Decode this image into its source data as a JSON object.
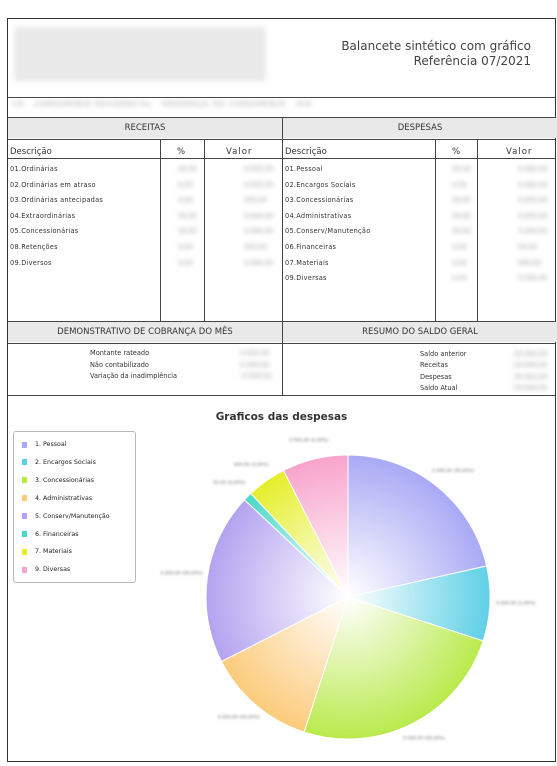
{
  "report": {
    "title": "Balancete sintético com gráfico",
    "reference": "Referência 07/2021",
    "condominium": "CO - CONDOMÍNIO RESIDENCIAL · ENDEREÇO DO CONDOMÍNIO · 000"
  },
  "receitas": {
    "header": "RECEITAS",
    "col_desc": "Descrição",
    "col_pct": "%",
    "col_val": "Valor",
    "rows": [
      {
        "label": "01.Ordinárias",
        "pct": "00,00",
        "val": "0.000,00"
      },
      {
        "label": "02.Ordinárias em atraso",
        "pct": "0,00",
        "val": "0.000,00"
      },
      {
        "label": "03.Ordinárias antecipadas",
        "pct": "0,00",
        "val": "000,00"
      },
      {
        "label": "04.Extraordinárias",
        "pct": "00,00",
        "val": "0.000,00"
      },
      {
        "label": "05.Concessionárias",
        "pct": "00,00",
        "val": "0.000,00"
      },
      {
        "label": "08.Retenções",
        "pct": "0,00",
        "val": "000,00"
      },
      {
        "label": "09.Diversos",
        "pct": "0,00",
        "val": "0.000,00"
      }
    ]
  },
  "despesas": {
    "header": "DESPESAS",
    "col_desc": "Descrição",
    "col_pct": "%",
    "col_val": "Valor",
    "rows": [
      {
        "label": "01.Pessoal",
        "pct": "00,00",
        "val": "0.000,00"
      },
      {
        "label": "02.Encargos Sociais",
        "pct": "0,00",
        "val": "0.000,00"
      },
      {
        "label": "03.Concessionárias",
        "pct": "00,00",
        "val": "0.000,00"
      },
      {
        "label": "04.Administrativas",
        "pct": "00,00",
        "val": "0.000,00"
      },
      {
        "label": "05.Conserv/Manutenção",
        "pct": "00,00",
        "val": "0.000,00"
      },
      {
        "label": "06.Financeiras",
        "pct": "0,00",
        "val": "00,00"
      },
      {
        "label": "07.Materiais",
        "pct": "0,00",
        "val": "000,00"
      },
      {
        "label": "09.Diversas",
        "pct": "0,00",
        "val": "0.000,00"
      }
    ]
  },
  "cobranca": {
    "header": "DEMONSTRATIVO DE COBRANÇA DO MÊS",
    "rows": [
      {
        "label": "Montante rateado",
        "val": "0.000,00"
      },
      {
        "label": "Não contabilizado",
        "val": "0.000,00"
      },
      {
        "label": "Variação da inadimplência",
        "val": "-0.000,00"
      }
    ]
  },
  "saldo": {
    "header": "RESUMO DO SALDO GERAL",
    "rows": [
      {
        "label": "Saldo anterior",
        "val": "00.000,00"
      },
      {
        "label": "Receitas",
        "val": "00.000,00"
      },
      {
        "label": "Despesas",
        "val": "00.000,00"
      },
      {
        "label": "Saldo Atual",
        "val": "00.000,00"
      }
    ]
  },
  "chart_data": {
    "type": "pie",
    "title": "Graficos das despesas",
    "legend_position": "left",
    "categories": [
      "1. Pessoal",
      "2. Encargos Sociais",
      "3. Concessionárias",
      "4. Administrativas",
      "5. Conserv/Manutenção",
      "6. Financeiras",
      "7. Materiais",
      "9. Diversas"
    ],
    "values": [
      21.5,
      8.5,
      25.0,
      12.5,
      19.5,
      1.0,
      4.5,
      7.5
    ],
    "colors": [
      "#a9a9f5",
      "#5fd0e6",
      "#b9ea4c",
      "#fccb7c",
      "#b3a3f0",
      "#46d8c8",
      "#e5ee2a",
      "#f8a3cb"
    ],
    "slice_labels": [
      "0.000,00 (00,00%)",
      "0.000,00 (0,00%)",
      "0.000,00 (00,00%)",
      "0.000,00 (00,00%)",
      "0.000,00 (00,00%)",
      "00,00 (0,00%)",
      "000,00 (0,00%)",
      "0.000,00 (0,00%)"
    ]
  }
}
